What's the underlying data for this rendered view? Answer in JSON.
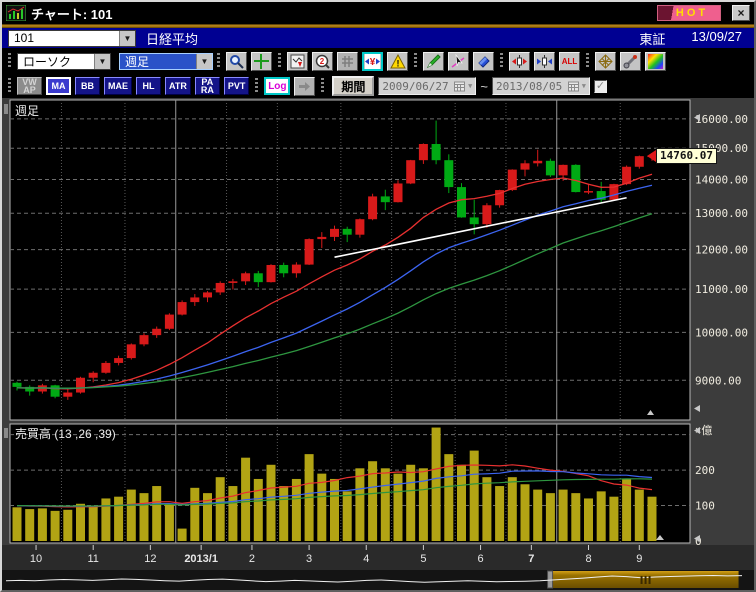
{
  "window": {
    "title": "チャート: 101",
    "hot_label": "HOT",
    "close_glyph": "×"
  },
  "info_bar": {
    "symbol_code": "101",
    "symbol_name": "日経平均",
    "exchange": "東証",
    "date": "13/09/27"
  },
  "toolbar_main": {
    "chart_type_value": "ローソク",
    "timeframe_value": "週足",
    "all_label": "ALL",
    "icons": [
      "search",
      "crosshair",
      "chart-down-arrow",
      "zoom-detail",
      "grid",
      "yen-axis-adjust",
      "warning",
      "draw-pencil",
      "select-cursor",
      "eraser",
      "candle-expand",
      "candle-compress",
      "show-all",
      "mesh",
      "settings-wrench",
      "rainbow-palette"
    ]
  },
  "toolbar_indicators": {
    "buttons": [
      {
        "lines": [
          "VW",
          "AP"
        ],
        "state": "disabled"
      },
      {
        "lines": [
          "MA"
        ],
        "state": "active"
      },
      {
        "lines": [
          "BB"
        ],
        "state": "normal"
      },
      {
        "lines": [
          "MAE"
        ],
        "state": "normal"
      },
      {
        "lines": [
          "HL"
        ],
        "state": "normal"
      },
      {
        "lines": [
          "ATR"
        ],
        "state": "normal"
      },
      {
        "lines": [
          "PA",
          "RA"
        ],
        "state": "normal"
      },
      {
        "lines": [
          "PVT"
        ],
        "state": "normal"
      }
    ],
    "log_label": "Log",
    "period_label": "期間",
    "date_from": "2009/06/27",
    "date_to": "2013/08/05",
    "range_separator": "~",
    "range_checkbox_checked": true,
    "check_glyph": "✓"
  },
  "chart": {
    "panel_label": "週足",
    "volume_label": "売買高 (13 ,26 ,39)",
    "volume_unit_label": "×億",
    "price_callout": "14760.07",
    "colors": {
      "up": "#d81a1a",
      "down": "#00aa14",
      "ma13": "#e83030",
      "ma26": "#3c64f0",
      "ma39": "#2e9640",
      "trend": "#ffffff",
      "volume_bar": "#b2a414",
      "grid": "#6e6e6e",
      "grid_month": "#585858",
      "grid_bright": "#9a9a9a",
      "plot_bg": "#000000",
      "plot_border": "#b8b8b8",
      "axis_bg": "#3c3c3c",
      "xaxis_bg": "#2a2a2a",
      "label": "#f0ece0",
      "nav_gold": "#9a7200",
      "nav_gold_hi": "#d4a017"
    }
  },
  "chart_data": {
    "type": "candlestick",
    "title": "日経平均 週足 ローソク",
    "scale": "log",
    "y_ticks": [
      16000,
      15000,
      14000,
      13000,
      12000,
      11000,
      10000,
      9000
    ],
    "y_range": [
      8246,
      16680
    ],
    "volume_ticks": [
      200,
      100,
      0
    ],
    "volume_max": 330,
    "months": [
      {
        "label": "10",
        "weeks": 4
      },
      {
        "label": "11",
        "weeks": 5
      },
      {
        "label": "12",
        "weeks": 4
      },
      {
        "label": "2013/1",
        "weeks": 4,
        "bold": true,
        "bright": true
      },
      {
        "label": "2",
        "weeks": 4
      },
      {
        "label": "3",
        "weeks": 5
      },
      {
        "label": "4",
        "weeks": 4
      },
      {
        "label": "5",
        "weeks": 5
      },
      {
        "label": "6",
        "weeks": 4
      },
      {
        "label": "7",
        "weeks": 4,
        "bold": true
      },
      {
        "label": "8",
        "weeks": 5,
        "bright": true
      },
      {
        "label": "9",
        "weeks": 3
      }
    ],
    "candles": [
      [
        8950,
        8970,
        8800,
        8870,
        95
      ],
      [
        8870,
        8900,
        8700,
        8780,
        90
      ],
      [
        8780,
        8930,
        8740,
        8900,
        92
      ],
      [
        8900,
        8910,
        8650,
        8680,
        85
      ],
      [
        8680,
        8820,
        8620,
        8760,
        88
      ],
      [
        8760,
        9070,
        8740,
        9050,
        105
      ],
      [
        9050,
        9180,
        8960,
        9150,
        100
      ],
      [
        9150,
        9390,
        9130,
        9350,
        120
      ],
      [
        9350,
        9500,
        9300,
        9450,
        125
      ],
      [
        9450,
        9760,
        9420,
        9740,
        145
      ],
      [
        9740,
        9980,
        9700,
        9940,
        135
      ],
      [
        9940,
        10130,
        9880,
        10080,
        155
      ],
      [
        10080,
        10430,
        10050,
        10400,
        105
      ],
      [
        10400,
        10730,
        10380,
        10690,
        35
      ],
      [
        10690,
        10880,
        10600,
        10800,
        150
      ],
      [
        10800,
        10950,
        10690,
        10920,
        135
      ],
      [
        10920,
        11190,
        10860,
        11150,
        180
      ],
      [
        11150,
        11250,
        10990,
        11190,
        155
      ],
      [
        11190,
        11430,
        11100,
        11390,
        235
      ],
      [
        11390,
        11450,
        11050,
        11170,
        175
      ],
      [
        11170,
        11620,
        11160,
        11600,
        215
      ],
      [
        11600,
        11660,
        11290,
        11390,
        155
      ],
      [
        11390,
        11670,
        11280,
        11610,
        175
      ],
      [
        11610,
        12300,
        11600,
        12280,
        245
      ],
      [
        12280,
        12470,
        12040,
        12340,
        190
      ],
      [
        12340,
        12650,
        12230,
        12560,
        175
      ],
      [
        12560,
        12620,
        12200,
        12400,
        140
      ],
      [
        12400,
        12850,
        12320,
        12830,
        205
      ],
      [
        12830,
        13570,
        12800,
        13490,
        225
      ],
      [
        13490,
        13690,
        13090,
        13320,
        205
      ],
      [
        13320,
        13980,
        13310,
        13880,
        190
      ],
      [
        13880,
        14620,
        13860,
        14610,
        215
      ],
      [
        14610,
        15160,
        14490,
        15140,
        205
      ],
      [
        15140,
        15940,
        14480,
        14610,
        320
      ],
      [
        14610,
        14800,
        13590,
        13770,
        245
      ],
      [
        13770,
        13890,
        12870,
        12880,
        215
      ],
      [
        12880,
        13390,
        12410,
        12690,
        255
      ],
      [
        12690,
        13290,
        12590,
        13230,
        180
      ],
      [
        13230,
        13690,
        13160,
        13680,
        155
      ],
      [
        13680,
        14320,
        13650,
        14310,
        180
      ],
      [
        14310,
        14610,
        14100,
        14510,
        160
      ],
      [
        14510,
        14950,
        14410,
        14590,
        145
      ],
      [
        14590,
        14660,
        14080,
        14130,
        135
      ],
      [
        14130,
        14470,
        13960,
        14460,
        145
      ],
      [
        14460,
        14480,
        13610,
        13620,
        135
      ],
      [
        13620,
        13870,
        13560,
        13650,
        120
      ],
      [
        13650,
        13930,
        13320,
        13390,
        140
      ],
      [
        13390,
        13870,
        13360,
        13860,
        125
      ],
      [
        13860,
        14440,
        13830,
        14400,
        175
      ],
      [
        14400,
        14760,
        14340,
        14740,
        145
      ],
      [
        14740,
        14820,
        14590,
        14760,
        125
      ]
    ],
    "overlays": {
      "ma_periods": [
        13,
        26,
        39
      ],
      "volume_ma_periods": [
        13,
        26,
        39
      ],
      "seed_price": 8850,
      "seed_volume": 100
    },
    "trendline": {
      "from_week": 25,
      "from_price": 11800,
      "to_week": 48,
      "to_price": 13450
    },
    "last_price": 14760.07,
    "nav": {
      "points": [
        0.6,
        0.57,
        0.6,
        0.54,
        0.5,
        0.53,
        0.57,
        0.52,
        0.46,
        0.49,
        0.54,
        0.59,
        0.62,
        0.56,
        0.5,
        0.47,
        0.53,
        0.6,
        0.66,
        0.62,
        0.57,
        0.61,
        0.65,
        0.69,
        0.64,
        0.57,
        0.54,
        0.59,
        0.66,
        0.71,
        0.68,
        0.63,
        0.59,
        0.63,
        0.67,
        0.65,
        0.64,
        0.6,
        0.53,
        0.46,
        0.39,
        0.31,
        0.23,
        0.28,
        0.36,
        0.31,
        0.27,
        0.24,
        0.21,
        0.19,
        0.22,
        0.2
      ],
      "highlight_start": 0.74,
      "highlight_end": 0.99
    }
  }
}
